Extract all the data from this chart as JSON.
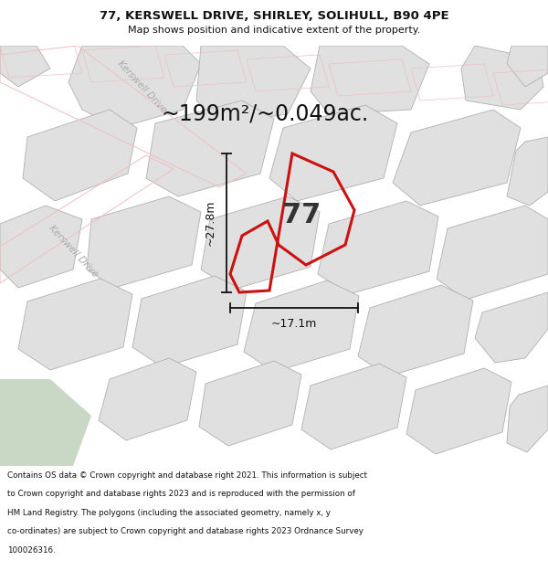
{
  "title_line1": "77, KERSWELL DRIVE, SHIRLEY, SOLIHULL, B90 4PE",
  "title_line2": "Map shows position and indicative extent of the property.",
  "area_text": "~199m²/~0.049ac.",
  "property_number": "77",
  "dim_width": "~17.1m",
  "dim_height": "~27.8m",
  "footer_lines": [
    "Contains OS data © Crown copyright and database right 2021. This information is subject",
    "to Crown copyright and database rights 2023 and is reproduced with the permission of",
    "HM Land Registry. The polygons (including the associated geometry, namely x, y",
    "co-ordinates) are subject to Crown copyright and database rights 2023 Ordnance Survey",
    "100026316."
  ],
  "map_bg": "#f5f5f5",
  "building_color": "#e0e0e0",
  "building_edge": "#b0b0b0",
  "road_outline_color": "#f0b0b0",
  "highlight_color": "#cc1111",
  "green_color": "#c8d8c4",
  "road_label_color": "#aaaaaa",
  "dim_line_color": "#111111",
  "text_color": "#111111"
}
